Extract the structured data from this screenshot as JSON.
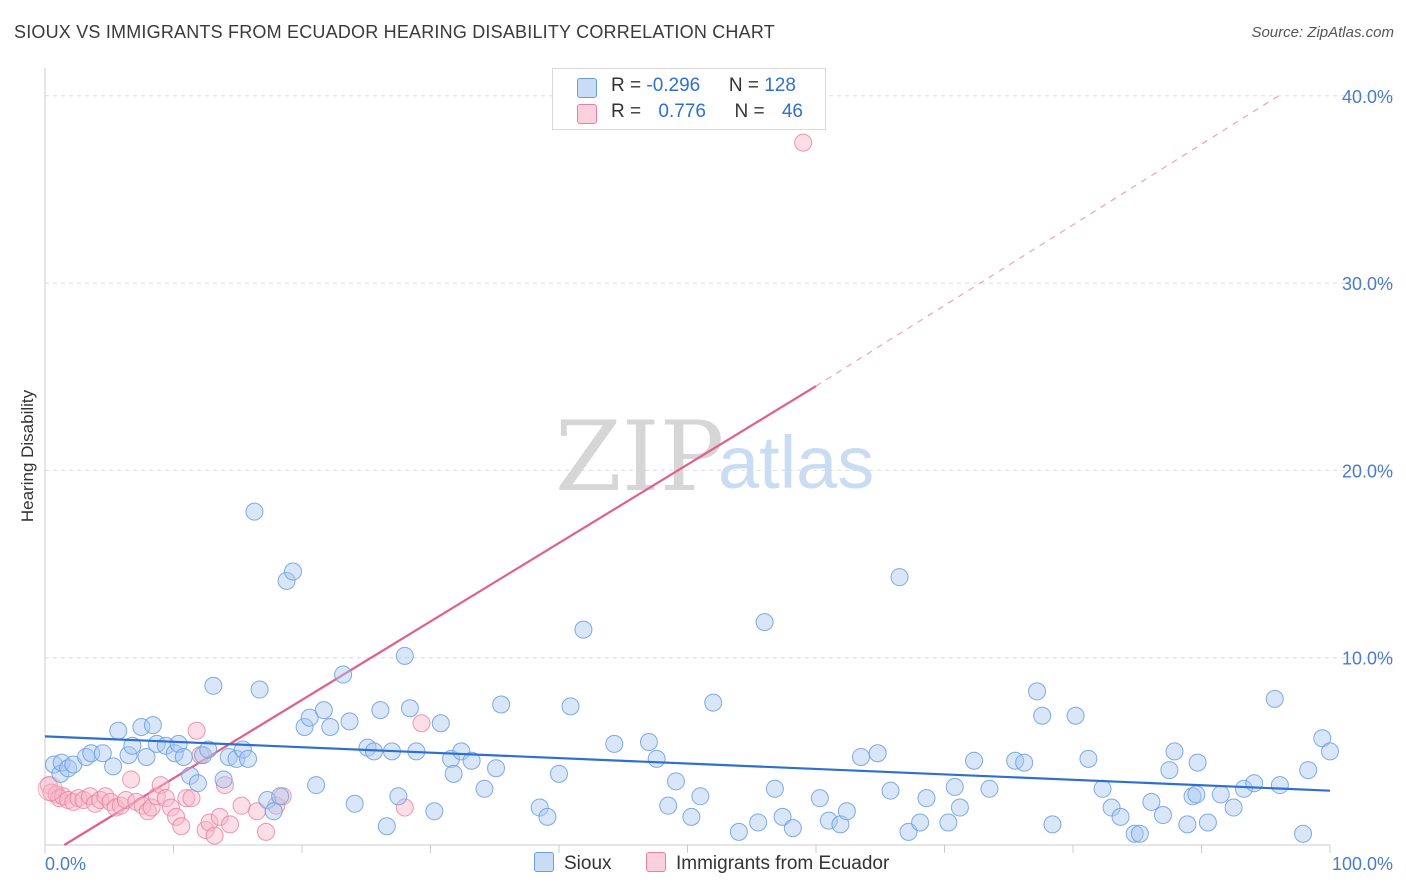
{
  "title": "SIOUX VS IMMIGRANTS FROM ECUADOR HEARING DISABILITY CORRELATION CHART",
  "source": "Source: ZipAtlas.com",
  "watermark": {
    "zip": "ZIP",
    "atlas": "atlas"
  },
  "legend_top": {
    "rows": [
      {
        "r_label": "R = ",
        "r_value": "-0.296",
        "n_label": "N = ",
        "n_value": "128",
        "color": "#a9c7ef"
      },
      {
        "r_label": "R = ",
        "r_value": "0.776",
        "n_label": "N = ",
        "n_value": "46",
        "color": "#f6b6c8"
      }
    ]
  },
  "legend_bottom": [
    {
      "label": "Sioux",
      "color": "#a9c7ef"
    },
    {
      "label": "Immigrants from Ecuador",
      "color": "#f6b6c8"
    }
  ],
  "colors": {
    "blue_fill": "#a9c7ef",
    "blue_stroke": "#6a9de0",
    "blue_line": "#2f6fd0",
    "pink_fill": "#f6b6c8",
    "pink_stroke": "#e87fa0",
    "pink_line": "#e0608a",
    "grid": "#dedede",
    "tick_text": "#4a7cc8"
  },
  "chart_data": {
    "type": "scatter",
    "title": "SIOUX VS IMMIGRANTS FROM ECUADOR HEARING DISABILITY CORRELATION CHART",
    "xlabel": "",
    "ylabel": "Hearing Disability",
    "xlim": [
      0,
      100
    ],
    "ylim": [
      0,
      41
    ],
    "x_tick_labels": [
      "0.0%",
      "100.0%"
    ],
    "y_ticks": [
      10,
      20,
      30,
      40
    ],
    "y_tick_labels": [
      "10.0%",
      "20.0%",
      "30.0%",
      "40.0%"
    ],
    "grid": true,
    "legend_position": "top-center",
    "series": [
      {
        "name": "Sioux",
        "r": -0.296,
        "n": 128,
        "trend": {
          "x": [
            0,
            100
          ],
          "y": [
            5.8,
            2.9
          ]
        },
        "points": [
          [
            0.7,
            4.3
          ],
          [
            1.2,
            3.8
          ],
          [
            1.3,
            4.4
          ],
          [
            1.8,
            4.1
          ],
          [
            2.2,
            4.3
          ],
          [
            3.2,
            4.7
          ],
          [
            3.6,
            4.9
          ],
          [
            4.5,
            4.9
          ],
          [
            5.3,
            4.2
          ],
          [
            5.7,
            6.1
          ],
          [
            6.5,
            4.8
          ],
          [
            6.8,
            5.3
          ],
          [
            7.5,
            6.3
          ],
          [
            7.9,
            4.7
          ],
          [
            8.4,
            6.4
          ],
          [
            8.7,
            5.4
          ],
          [
            9.4,
            5.3
          ],
          [
            10.1,
            4.9
          ],
          [
            10.4,
            5.4
          ],
          [
            10.8,
            4.7
          ],
          [
            11.3,
            3.7
          ],
          [
            11.9,
            3.3
          ],
          [
            12.3,
            4.8
          ],
          [
            12.7,
            5.1
          ],
          [
            13.1,
            8.5
          ],
          [
            13.9,
            3.5
          ],
          [
            14.3,
            4.7
          ],
          [
            14.9,
            4.6
          ],
          [
            15.4,
            5.1
          ],
          [
            15.8,
            4.6
          ],
          [
            16.3,
            17.8
          ],
          [
            16.7,
            8.3
          ],
          [
            17.3,
            2.4
          ],
          [
            17.8,
            1.8
          ],
          [
            18.3,
            2.6
          ],
          [
            18.8,
            14.1
          ],
          [
            19.3,
            14.6
          ],
          [
            20.2,
            6.3
          ],
          [
            20.6,
            6.8
          ],
          [
            21.1,
            3.2
          ],
          [
            21.7,
            7.2
          ],
          [
            22.2,
            6.3
          ],
          [
            23.2,
            9.1
          ],
          [
            23.7,
            6.6
          ],
          [
            24.1,
            2.2
          ],
          [
            25.1,
            5.2
          ],
          [
            25.6,
            5.0
          ],
          [
            26.1,
            7.2
          ],
          [
            26.6,
            1.0
          ],
          [
            27.0,
            5.0
          ],
          [
            27.5,
            2.6
          ],
          [
            28.0,
            10.1
          ],
          [
            28.4,
            7.3
          ],
          [
            28.9,
            5.0
          ],
          [
            30.3,
            1.8
          ],
          [
            30.8,
            6.5
          ],
          [
            31.6,
            4.6
          ],
          [
            31.8,
            3.8
          ],
          [
            32.4,
            5.0
          ],
          [
            33.2,
            4.5
          ],
          [
            34.2,
            3.0
          ],
          [
            35.1,
            4.1
          ],
          [
            35.5,
            7.5
          ],
          [
            38.5,
            2.0
          ],
          [
            39.1,
            1.5
          ],
          [
            40.0,
            3.8
          ],
          [
            40.9,
            7.4
          ],
          [
            41.9,
            11.5
          ],
          [
            44.3,
            5.4
          ],
          [
            47.0,
            5.5
          ],
          [
            47.6,
            4.6
          ],
          [
            48.5,
            2.1
          ],
          [
            49.1,
            3.4
          ],
          [
            50.3,
            1.5
          ],
          [
            51.0,
            2.6
          ],
          [
            52.0,
            7.6
          ],
          [
            54.0,
            0.7
          ],
          [
            55.5,
            1.2
          ],
          [
            56.0,
            11.9
          ],
          [
            56.8,
            3.0
          ],
          [
            57.4,
            1.5
          ],
          [
            58.2,
            0.9
          ],
          [
            60.3,
            2.5
          ],
          [
            61.0,
            1.3
          ],
          [
            61.9,
            1.1
          ],
          [
            62.4,
            1.8
          ],
          [
            63.5,
            4.7
          ],
          [
            64.8,
            4.9
          ],
          [
            65.8,
            2.9
          ],
          [
            66.5,
            14.3
          ],
          [
            67.2,
            0.7
          ],
          [
            68.1,
            1.2
          ],
          [
            68.6,
            2.5
          ],
          [
            70.3,
            1.2
          ],
          [
            70.8,
            3.1
          ],
          [
            71.2,
            2.0
          ],
          [
            72.3,
            4.5
          ],
          [
            73.5,
            3.0
          ],
          [
            75.5,
            4.5
          ],
          [
            76.2,
            4.4
          ],
          [
            77.2,
            8.2
          ],
          [
            77.6,
            6.9
          ],
          [
            78.4,
            1.1
          ],
          [
            80.2,
            6.9
          ],
          [
            81.2,
            4.6
          ],
          [
            82.3,
            3.0
          ],
          [
            83.0,
            2.0
          ],
          [
            83.7,
            1.5
          ],
          [
            84.8,
            0.6
          ],
          [
            85.2,
            0.6
          ],
          [
            86.1,
            2.3
          ],
          [
            87.0,
            1.6
          ],
          [
            87.5,
            4.0
          ],
          [
            87.9,
            5.0
          ],
          [
            88.9,
            1.1
          ],
          [
            89.3,
            2.6
          ],
          [
            89.6,
            2.7
          ],
          [
            89.7,
            4.4
          ],
          [
            90.5,
            1.2
          ],
          [
            91.5,
            2.7
          ],
          [
            92.5,
            2.0
          ],
          [
            93.3,
            3.0
          ],
          [
            94.1,
            3.3
          ],
          [
            95.7,
            7.8
          ],
          [
            96.1,
            3.2
          ],
          [
            97.9,
            0.6
          ],
          [
            98.3,
            4.0
          ],
          [
            99.4,
            5.7
          ],
          [
            100.0,
            5.0
          ]
        ]
      },
      {
        "name": "Immigrants from Ecuador",
        "r": 0.776,
        "n": 46,
        "trend": {
          "x": [
            1.5,
            60.0
          ],
          "y": [
            0.0,
            24.5
          ]
        },
        "trend_extension": {
          "x": [
            60.0,
            96.0
          ],
          "y": [
            24.5,
            40.0
          ]
        },
        "points": [
          [
            0.3,
            3.2
          ],
          [
            0.5,
            2.8
          ],
          [
            0.9,
            2.7
          ],
          [
            1.1,
            2.5
          ],
          [
            1.4,
            2.6
          ],
          [
            1.8,
            2.4
          ],
          [
            2.2,
            2.3
          ],
          [
            2.6,
            2.5
          ],
          [
            3.0,
            2.4
          ],
          [
            3.5,
            2.6
          ],
          [
            3.9,
            2.2
          ],
          [
            4.3,
            2.4
          ],
          [
            4.7,
            2.6
          ],
          [
            5.1,
            2.3
          ],
          [
            5.5,
            2.0
          ],
          [
            5.9,
            2.1
          ],
          [
            6.3,
            2.4
          ],
          [
            6.7,
            3.5
          ],
          [
            7.1,
            2.3
          ],
          [
            7.6,
            2.1
          ],
          [
            8.0,
            1.8
          ],
          [
            8.3,
            2.0
          ],
          [
            8.7,
            2.6
          ],
          [
            9.0,
            3.2
          ],
          [
            9.4,
            2.5
          ],
          [
            9.8,
            2.0
          ],
          [
            10.2,
            1.5
          ],
          [
            10.6,
            1.0
          ],
          [
            11.0,
            2.5
          ],
          [
            11.4,
            2.5
          ],
          [
            11.8,
            6.1
          ],
          [
            12.1,
            4.8
          ],
          [
            12.5,
            0.8
          ],
          [
            12.8,
            1.2
          ],
          [
            13.2,
            0.5
          ],
          [
            13.6,
            1.5
          ],
          [
            14.0,
            3.2
          ],
          [
            14.4,
            1.1
          ],
          [
            15.3,
            2.1
          ],
          [
            16.5,
            1.8
          ],
          [
            17.2,
            0.7
          ],
          [
            18.0,
            2.1
          ],
          [
            18.5,
            2.6
          ],
          [
            28.0,
            2.0
          ],
          [
            29.3,
            6.5
          ],
          [
            59.0,
            37.5
          ]
        ]
      }
    ]
  }
}
